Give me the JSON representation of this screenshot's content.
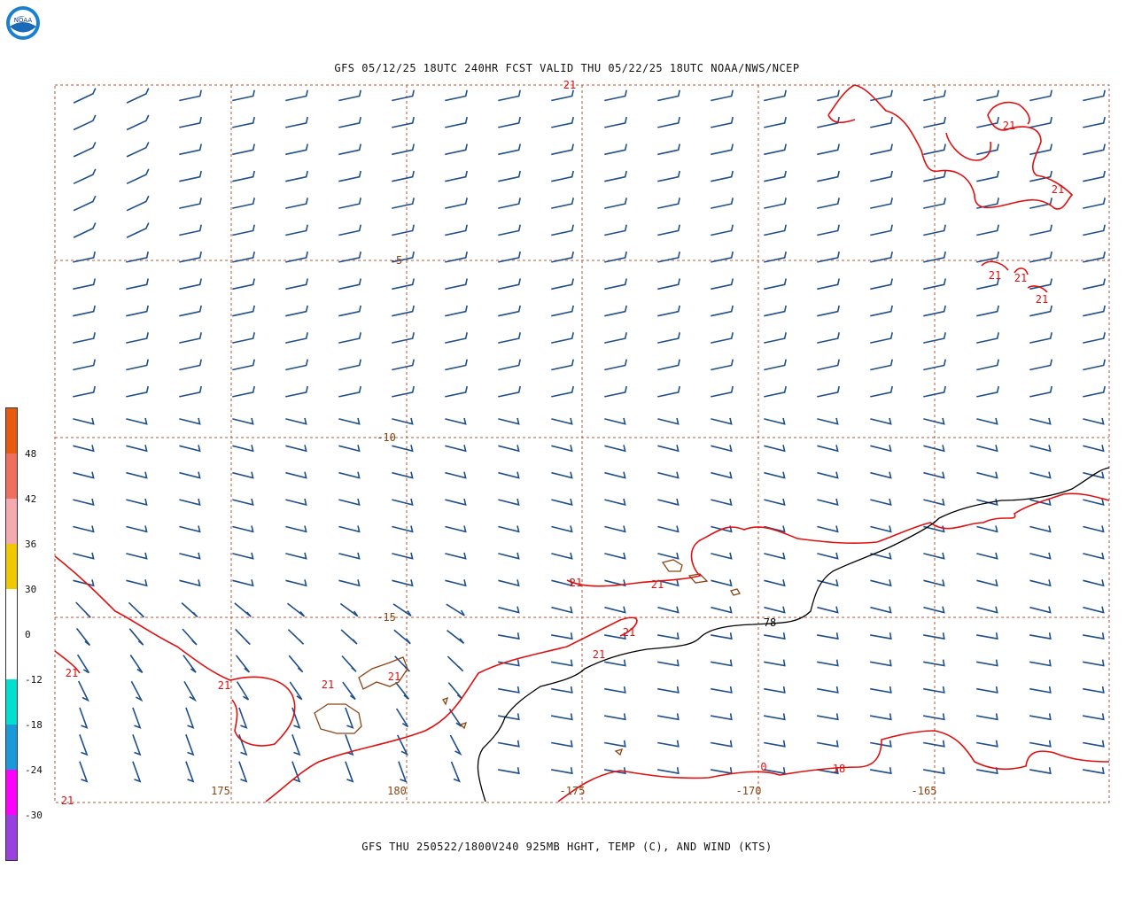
{
  "header": {
    "title": "GFS 05/12/25 18UTC 240HR FCST VALID THU 05/22/25 18UTC NOAA/NWS/NCEP",
    "logo_text": "NOAA"
  },
  "footer": {
    "title": "GFS THU 250522/1800V240 925MB HGHT, TEMP (C), AND WIND (KTS)"
  },
  "map": {
    "lat_labels": [
      "-5",
      "-10",
      "-15"
    ],
    "lon_labels": [
      "175",
      "180",
      "-175",
      "-170",
      "-165"
    ],
    "temp_contour_labels": [
      "21",
      "21",
      "21",
      "21",
      "21",
      "21",
      "21",
      "21",
      "21",
      "21",
      "21",
      "21",
      "21",
      "21",
      "21",
      "18"
    ],
    "height_contour_labels": [
      "78",
      "0"
    ],
    "colors": {
      "wind_barb": "#1f4e8c",
      "temp_contour": "#e01010",
      "height_contour": "#000000",
      "coastline": "#8b4513",
      "grid": "#b05a3a"
    }
  },
  "colorbar": {
    "labels": [
      "48",
      "42",
      "36",
      "30",
      "0",
      "-12",
      "-18",
      "-24",
      "-30"
    ],
    "colors": [
      "#e85a10",
      "#f07060",
      "#f5aab0",
      "#f0c800",
      "#ffffff",
      "#ffffff",
      "#00e0d0",
      "#1a9ad8",
      "#ff00ff",
      "#9a40e0"
    ]
  }
}
